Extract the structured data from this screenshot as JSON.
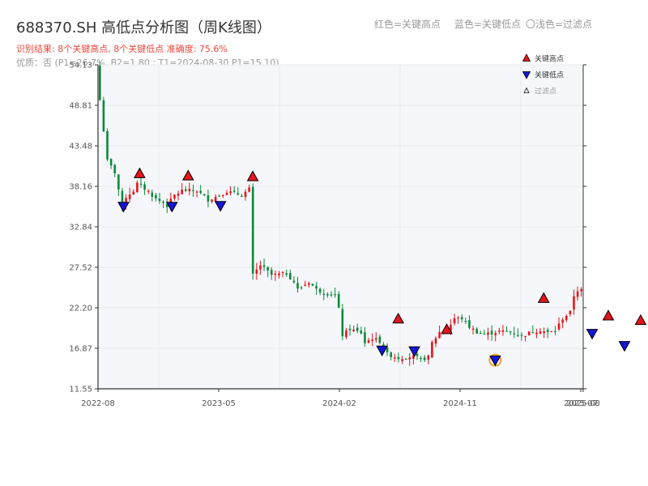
{
  "header": {
    "title": "688370.SH 高低点分析图（周K线图）",
    "result_line": "识别结果: 8个关键高点, 8个关键低点  准确度: 75.6%",
    "quality_line": "优质：否  (P1=26.7%, B2=1.80 ; T1=2024-08-30 P1=15.10)",
    "legend_red": "红色=关键高点",
    "legend_blue": "蓝色=关键低点",
    "legend_light": "〇浅色=过滤点"
  },
  "colors": {
    "up": "#e8141c",
    "down": "#0b8a3a",
    "high_marker": "#e8141c",
    "low_marker": "#1515d8",
    "filtered_ring": "#f0a030",
    "plot_bg": "#f5f7fa",
    "grid": "#e3e6ea"
  },
  "chart_data": {
    "type": "candlestick",
    "ylim": [
      11.55,
      54.13
    ],
    "y_ticks": [
      11.55,
      16.87,
      22.2,
      27.52,
      32.84,
      38.16,
      43.48,
      48.81,
      54.13
    ],
    "x_tick_labels": [
      "2022-08",
      "2023-05",
      "2024-02",
      "2024-11",
      "2025-07",
      "2025-08"
    ],
    "legend": [
      "关键高点",
      "关键低点",
      "过滤点"
    ],
    "key_points": {
      "highs": [
        {
          "date": "2022-10",
          "value": 39.0
        },
        {
          "date": "2023-01",
          "value": 38.7
        },
        {
          "date": "2023-05",
          "value": 38.6
        },
        {
          "date": "2024-02",
          "value": 19.9
        },
        {
          "date": "2024-05",
          "value": 18.5
        },
        {
          "date": "2024-11",
          "value": 22.6
        },
        {
          "date": "2025-03",
          "value": 20.3
        },
        {
          "date": "2025-05",
          "value": 19.7
        }
      ],
      "lows": [
        {
          "date": "2022-09",
          "value": 35.3
        },
        {
          "date": "2022-12",
          "value": 35.3
        },
        {
          "date": "2023-03",
          "value": 35.4
        },
        {
          "date": "2024-01",
          "value": 16.4
        },
        {
          "date": "2024-03",
          "value": 16.3
        },
        {
          "date": "2024-08",
          "value": 15.1
        },
        {
          "date": "2025-02",
          "value": 18.6
        },
        {
          "date": "2025-04",
          "value": 17.0
        }
      ],
      "filtered": [
        {
          "date": "2024-08",
          "value": 15.1
        }
      ]
    },
    "anchors": [
      [
        0,
        49.5
      ],
      [
        2,
        41.5
      ],
      [
        4,
        40.0
      ],
      [
        6,
        35.5
      ],
      [
        7,
        36.8
      ],
      [
        9,
        37.6
      ],
      [
        10,
        38.5
      ],
      [
        13,
        37.5
      ],
      [
        15,
        36.5
      ],
      [
        17,
        36.0
      ],
      [
        18,
        35.6
      ],
      [
        20,
        37.0
      ],
      [
        22,
        37.6
      ],
      [
        26,
        37.6
      ],
      [
        29,
        36.4
      ],
      [
        31,
        36.8
      ],
      [
        34,
        37.5
      ],
      [
        38,
        37.0
      ],
      [
        40,
        37.8
      ],
      [
        41,
        26.5
      ],
      [
        43,
        27.8
      ],
      [
        46,
        26.5
      ],
      [
        50,
        26.7
      ],
      [
        52,
        25.6
      ],
      [
        53,
        24.6
      ],
      [
        56,
        25.6
      ],
      [
        58,
        24.6
      ],
      [
        60,
        24.2
      ],
      [
        63,
        23.8
      ],
      [
        64,
        22.0
      ],
      [
        65,
        18.6
      ],
      [
        67,
        19.4
      ],
      [
        70,
        18.9
      ],
      [
        71,
        17.6
      ],
      [
        73,
        18.2
      ],
      [
        75,
        17.8
      ],
      [
        77,
        16.1
      ],
      [
        80,
        15.6
      ],
      [
        84,
        15.8
      ],
      [
        86,
        15.4
      ],
      [
        88,
        15.7
      ],
      [
        89,
        17.6
      ],
      [
        91,
        19.0
      ],
      [
        93,
        19.2
      ],
      [
        95,
        20.8
      ],
      [
        97,
        20.8
      ],
      [
        99,
        19.7
      ],
      [
        101,
        19.0
      ],
      [
        103,
        18.7
      ],
      [
        107,
        19.1
      ],
      [
        110,
        19.1
      ],
      [
        113,
        18.5
      ],
      [
        115,
        18.9
      ],
      [
        118,
        19.3
      ],
      [
        120,
        18.9
      ],
      [
        122,
        19.2
      ],
      [
        124,
        20.8
      ],
      [
        126,
        21.6
      ],
      [
        127,
        23.8
      ],
      [
        128,
        24.5
      ]
    ]
  }
}
